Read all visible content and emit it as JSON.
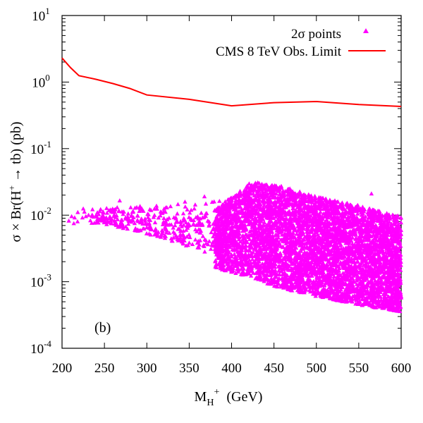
{
  "chart_data": {
    "type": "scatter",
    "panel_label": "(b)",
    "xlabel": {
      "base": "M",
      "sub": "H",
      "sup": "+",
      "unit": "(GeV)"
    },
    "ylabel": {
      "pre": "σ × Br(H",
      "sup": "+",
      "post": " → tb) (pb)"
    },
    "x_range": [
      200,
      600
    ],
    "y_range_log10": [
      -4,
      1
    ],
    "x_ticks": [
      "200",
      "250",
      "300",
      "350",
      "400",
      "450",
      "500",
      "550",
      "600"
    ],
    "y_ticks": [
      {
        "base": "10",
        "exp": "-4"
      },
      {
        "base": "10",
        "exp": "-3"
      },
      {
        "base": "10",
        "exp": "-2"
      },
      {
        "base": "10",
        "exp": "-1"
      },
      {
        "base": "10",
        "exp": "0"
      },
      {
        "base": "10",
        "exp": "1"
      }
    ],
    "legend": [
      {
        "label": "2σ points",
        "marker": "triangle",
        "color": "#ff00ff"
      },
      {
        "label": "CMS 8 TeV Obs. Limit",
        "marker": "line",
        "color": "#ff0000"
      }
    ],
    "series": [
      {
        "name": "CMS 8 TeV Obs. Limit",
        "type": "line",
        "color": "#ff0000",
        "x": [
          200,
          210,
          220,
          240,
          260,
          280,
          300,
          350,
          400,
          450,
          500,
          550,
          600
        ],
        "y": [
          2.3,
          1.65,
          1.25,
          1.1,
          0.95,
          0.8,
          0.64,
          0.55,
          0.44,
          0.49,
          0.51,
          0.46,
          0.43
        ]
      },
      {
        "name": "2σ points",
        "type": "scatter",
        "color": "#ff00ff",
        "isolated_points": [
          [
            208,
            0.0082
          ],
          [
            225,
            0.0125
          ],
          [
            235,
            0.0076
          ],
          [
            237,
            0.0094
          ],
          [
            255,
            0.0078
          ],
          [
            258,
            0.0076
          ],
          [
            262,
            0.0074
          ],
          [
            265,
            0.013
          ],
          [
            268,
            0.0165
          ],
          [
            272,
            0.0068
          ],
          [
            275,
            0.0092
          ],
          [
            278,
            0.0105
          ],
          [
            281,
            0.013
          ],
          [
            283,
            0.0111
          ],
          [
            286,
            0.0128
          ],
          [
            289,
            0.0098
          ],
          [
            292,
            0.0136
          ],
          [
            296,
            0.0115
          ],
          [
            298,
            0.0088
          ],
          [
            302,
            0.0102
          ],
          [
            305,
            0.0118
          ],
          [
            308,
            0.0093
          ],
          [
            312,
            0.0124
          ],
          [
            316,
            0.0098
          ],
          [
            320,
            0.0112
          ],
          [
            324,
            0.0086
          ],
          [
            328,
            0.0135
          ],
          [
            332,
            0.0092
          ],
          [
            336,
            0.0105
          ],
          [
            340,
            0.0078
          ],
          [
            345,
            0.0158
          ],
          [
            348,
            0.0064
          ],
          [
            352,
            0.0088
          ],
          [
            356,
            0.0125
          ],
          [
            360,
            0.0095
          ],
          [
            364,
            0.0072
          ],
          [
            368,
            0.019
          ],
          [
            372,
            0.0082
          ],
          [
            376,
            0.0055
          ],
          [
            380,
            0.0118
          ],
          [
            384,
            0.0068
          ],
          [
            388,
            0.0052
          ],
          [
            392,
            0.0095
          ],
          [
            396,
            0.0062
          ],
          [
            565,
            0.021
          ]
        ],
        "region": {
          "x_min": 380,
          "x_max": 600,
          "upper_edge": {
            "x": [
              380,
              420,
              430,
              460,
              500,
              550,
              600
            ],
            "y": [
              0.012,
              0.03,
              0.031,
              0.027,
              0.019,
              0.014,
              0.0095
            ]
          },
          "lower_edge": {
            "x": [
              380,
              420,
              450,
              500,
              550,
              600
            ],
            "y": [
              0.0016,
              0.0012,
              0.00085,
              0.0006,
              0.00045,
              0.00035
            ]
          }
        },
        "band": {
          "x_min": 210,
          "x_max": 400,
          "upper_edge": {
            "x": [
              210,
              260,
              300,
              350,
              400
            ],
            "y": [
              0.012,
              0.014,
              0.014,
              0.016,
              0.02
            ]
          },
          "lower_edge": {
            "x": [
              240,
              280,
              320,
              360,
              400
            ],
            "y": [
              0.0075,
              0.006,
              0.0045,
              0.003,
              0.002
            ]
          }
        }
      }
    ]
  }
}
